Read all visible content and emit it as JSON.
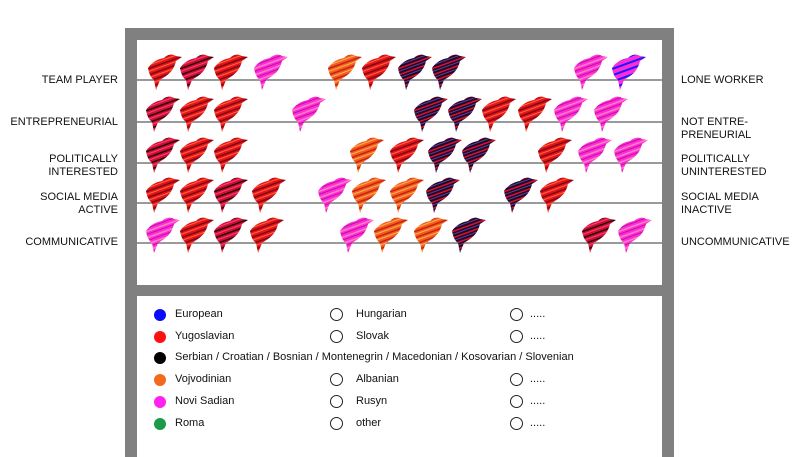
{
  "scales": [
    {
      "left": "TEAM PLAYER",
      "right": "LONE WORKER"
    },
    {
      "left": "ENTREPRENEURIAL",
      "right": "NOT ENTRE-\nPRENEURIAL"
    },
    {
      "left": "POLITICALLY\nINTERESTED",
      "right": "POLITICALLY\nUNINTERESTED"
    },
    {
      "left": "SOCIAL MEDIA\nACTIVE",
      "right": "SOCIAL MEDIA\nINACTIVE"
    },
    {
      "left": "COMMUNICATIVE",
      "right": "UNCOMMUNICATIVE"
    }
  ],
  "legend": {
    "col1": [
      {
        "label": "European",
        "color": "#0a0aff"
      },
      {
        "label": "Yugoslavian",
        "color": "#ff1010"
      },
      {
        "label": "Serbian / Croatian / Bosnian / Montenegrin / Macedonian / Kosovarian / Slovenian",
        "color": "#000000"
      },
      {
        "label": "Vojvodinian",
        "color": "#f26a1b"
      },
      {
        "label": "Novi Sadian",
        "color": "#ff22ee"
      },
      {
        "label": "Roma",
        "color": "#1a9a4a"
      }
    ],
    "col2": [
      "Hungarian",
      "Slovak",
      "Albanian",
      "Rusyn",
      "other"
    ],
    "col3": [
      ".....",
      ".....",
      ".....",
      ".....",
      "....."
    ]
  },
  "bird_colors": {
    "red": "#e8121a",
    "orange": "#f2601a",
    "magenta": "#ff2ad8",
    "dark": "#1a0a2a",
    "crimson": "#d01030"
  }
}
